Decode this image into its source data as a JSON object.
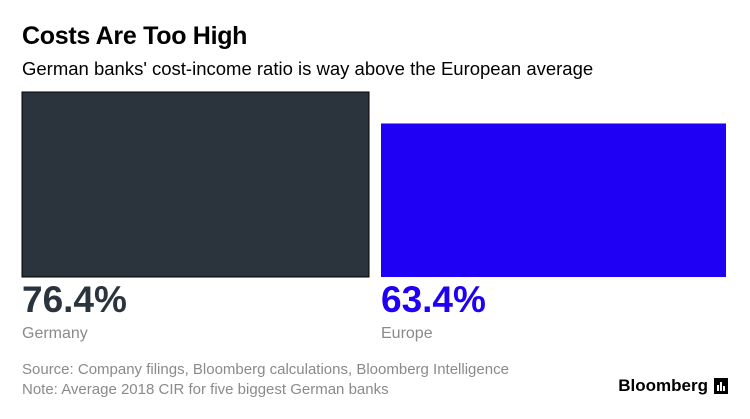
{
  "title": "Costs Are Too High",
  "subtitle": "German banks' cost-income ratio is way above the European average",
  "chart_data": {
    "type": "bar",
    "categories": [
      "Germany",
      "Europe"
    ],
    "values": [
      76.4,
      63.4
    ],
    "value_labels": [
      "76.4%",
      "63.4%"
    ],
    "colors": [
      "#2b333c",
      "#1f00f5"
    ],
    "ylim": [
      0,
      76.4
    ],
    "title": "Costs Are Too High",
    "subtitle": "German banks' cost-income ratio is way above the European average",
    "xlabel": "",
    "ylabel": "",
    "grid": false
  },
  "footer": {
    "source": "Source: Company filings, Bloomberg calculations, Bloomberg Intelligence",
    "note": "Note: Average 2018 CIR for five biggest German banks",
    "brand": "Bloomberg"
  },
  "colors": {
    "label_gray": "#8a8a8a",
    "bar_outline": "#000000"
  },
  "icons": {
    "brand_icon": "bloomberg-logo-icon"
  }
}
